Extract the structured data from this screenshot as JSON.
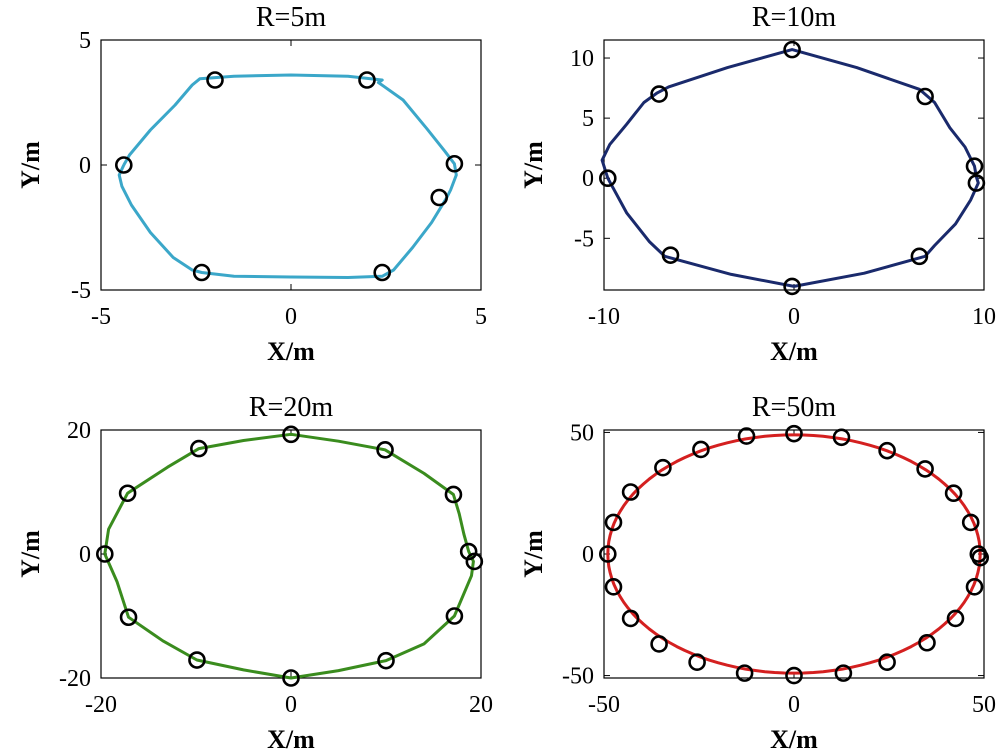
{
  "chart_data": [
    {
      "type": "line",
      "title": "R=5m",
      "xlabel": "X/m",
      "ylabel": "Y/m",
      "xlim": [
        -5,
        5
      ],
      "ylim": [
        -5,
        5
      ],
      "xticks": [
        "-5",
        "0",
        "5"
      ],
      "yticks": [
        "5",
        "0",
        "-5"
      ],
      "color": "#3BA7C9",
      "curve_x": [
        -4.4,
        -4.52,
        -4.45,
        -4.2,
        -3.7,
        -3.1,
        -2.6,
        -2.35,
        -1.5,
        0.0,
        1.5,
        2.4,
        2.7,
        3.2,
        3.7,
        4.0,
        4.1,
        4.2,
        4.35,
        4.3,
        4.05,
        3.55,
        2.95,
        2.3,
        2.4,
        1.5,
        0.0,
        -1.5,
        -2.4,
        -2.6,
        -3.05,
        -3.7,
        -4.25,
        -4.4
      ],
      "curve_y": [
        0.0,
        -0.4,
        -0.85,
        -1.6,
        -2.7,
        -3.7,
        -4.2,
        -4.3,
        -4.45,
        -4.48,
        -4.5,
        -4.45,
        -4.2,
        -3.3,
        -2.3,
        -1.55,
        -1.3,
        -1.0,
        -0.4,
        0.05,
        0.55,
        1.5,
        2.6,
        3.3,
        3.4,
        3.55,
        3.6,
        3.55,
        3.45,
        3.2,
        2.4,
        1.4,
        0.4,
        0.0
      ],
      "markers_x": [
        -2.0,
        2.0,
        -4.4,
        4.3,
        3.9,
        -2.35,
        2.4
      ],
      "markers_y": [
        3.4,
        3.4,
        0.0,
        0.05,
        -1.3,
        -4.3,
        -4.3
      ]
    },
    {
      "type": "line",
      "title": "R=10m",
      "xlabel": "X/m",
      "ylabel": "Y/m",
      "xlim": [
        -10,
        10
      ],
      "ylim": [
        -9.3,
        11.5
      ],
      "xticks": [
        "-10",
        "0",
        "10"
      ],
      "yticks": [
        "10",
        "5",
        "0",
        "-5"
      ],
      "color": "#1A2A6C",
      "curve_x": [
        -9.8,
        -10.1,
        -9.7,
        -8.8,
        -7.9,
        -7.2,
        -6.6,
        -3.5,
        -0.1,
        3.3,
        6.6,
        7.4,
        8.2,
        9.0,
        9.5,
        9.6,
        9.7,
        9.3,
        8.5,
        7.4,
        6.9,
        3.7,
        0.0,
        -3.3,
        -6.8,
        -7.6,
        -8.8,
        -9.8
      ],
      "curve_y": [
        0.0,
        1.5,
        2.8,
        4.5,
        6.3,
        7.1,
        7.6,
        9.2,
        10.7,
        9.2,
        7.4,
        6.3,
        4.2,
        2.6,
        1.0,
        0.1,
        -0.4,
        -1.8,
        -3.8,
        -5.6,
        -6.5,
        -7.9,
        -9.0,
        -8.0,
        -6.5,
        -5.3,
        -2.9,
        0.0
      ],
      "markers_x": [
        -0.1,
        -7.1,
        6.9,
        -9.8,
        9.5,
        9.6,
        -6.5,
        6.6,
        -0.1
      ],
      "markers_y": [
        10.7,
        7.0,
        6.8,
        0.0,
        1.0,
        -0.4,
        -6.4,
        -6.5,
        -9.0
      ]
    },
    {
      "type": "line",
      "title": "R=20m",
      "xlabel": "X/m",
      "ylabel": "Y/m",
      "xlim": [
        -20,
        20
      ],
      "ylim": [
        -20,
        20
      ],
      "xticks": [
        "-20",
        "0",
        "20"
      ],
      "yticks": [
        "20",
        "0",
        "-20"
      ],
      "color": "#3A8C1E",
      "curve_x": [
        -19.6,
        -19.2,
        -17.2,
        -13.0,
        -9.7,
        -5.0,
        0.0,
        5.0,
        9.9,
        14.0,
        17.1,
        17.7,
        18.2,
        18.7,
        19.2,
        19.0,
        17.2,
        14.0,
        10.0,
        5.0,
        0.0,
        -5.0,
        -9.9,
        -13.5,
        -17.1,
        -18.3,
        -19.6
      ],
      "curve_y": [
        0.0,
        4.0,
        9.8,
        14.0,
        17.0,
        18.3,
        19.3,
        18.2,
        16.8,
        13.0,
        9.6,
        6.5,
        3.2,
        0.4,
        -1.2,
        -3.5,
        -10.0,
        -14.5,
        -17.2,
        -18.8,
        -20.0,
        -18.7,
        -17.1,
        -14.0,
        -10.2,
        -4.5,
        0.0
      ],
      "markers_x": [
        0.0,
        -9.7,
        9.9,
        -17.2,
        17.1,
        -19.6,
        18.7,
        19.3,
        -17.1,
        17.2,
        -9.9,
        10.0,
        0.0
      ],
      "markers_y": [
        19.3,
        17.0,
        16.8,
        9.8,
        9.6,
        0.0,
        0.4,
        -1.2,
        -10.2,
        -10.0,
        -17.1,
        -17.2,
        -20.0
      ]
    },
    {
      "type": "line",
      "title": "R=50m",
      "xlabel": "X/m",
      "ylabel": "Y/m",
      "xlim": [
        -50,
        50
      ],
      "ylim": [
        -51,
        51
      ],
      "xticks": [
        "-50",
        "0",
        "50"
      ],
      "yticks": [
        "50",
        "0",
        "-50"
      ],
      "color": "#D42020",
      "ellipse": {
        "a": 49.0,
        "b": 49.0
      },
      "markers_x": [
        0.0,
        -12.5,
        12.5,
        -24.5,
        24.5,
        -34.5,
        34.5,
        -43.0,
        42.0,
        -47.5,
        46.5,
        -49.0,
        48.5,
        49.0,
        -47.5,
        47.5,
        -43.0,
        42.5,
        -35.5,
        35.0,
        -25.5,
        24.5,
        -13.0,
        13.0,
        0.0
      ],
      "markers_y": [
        49.5,
        48.5,
        48.0,
        43.0,
        42.5,
        35.5,
        35.0,
        25.5,
        25.0,
        13.0,
        13.0,
        0.0,
        0.0,
        -1.5,
        -13.5,
        -13.5,
        -26.5,
        -26.5,
        -37.0,
        -36.5,
        -44.5,
        -44.5,
        -49.0,
        -49.0,
        -50.0
      ]
    }
  ]
}
